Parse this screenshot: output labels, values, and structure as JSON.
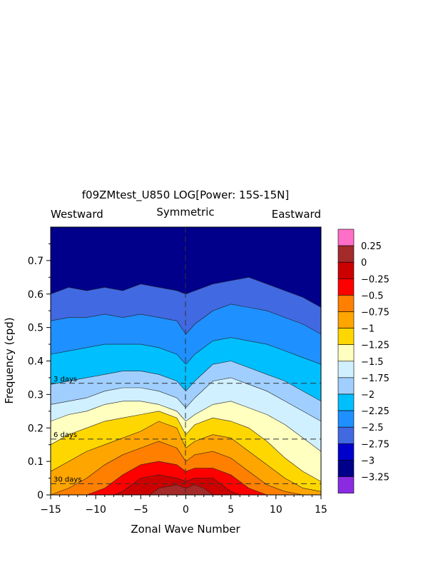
{
  "chart_data": {
    "type": "heatmap",
    "title": "f09ZMtest_U850 LOG[Power: 15S-15N]",
    "subtitle_left": "Westward",
    "subtitle_center": "Symmetric",
    "subtitle_right": "Eastward",
    "xlabel": "Zonal Wave Number",
    "ylabel": "Frequency (cpd)",
    "xlim": [
      -15,
      15
    ],
    "ylim": [
      0,
      0.8
    ],
    "x_ticks": [
      -15,
      -10,
      -5,
      0,
      5,
      10,
      15
    ],
    "x_tick_labels": [
      "−15",
      "−10",
      "−5",
      "0",
      "5",
      "10",
      "15"
    ],
    "y_ticks": [
      0,
      0.1,
      0.2,
      0.3,
      0.4,
      0.5,
      0.6,
      0.7
    ],
    "y_tick_labels": [
      "0",
      "0.1",
      "0.2",
      "0.3",
      "0.4",
      "0.5",
      "0.6",
      "0.7"
    ],
    "period_lines": [
      {
        "label": "3 days",
        "frequency": 0.3333
      },
      {
        "label": "6 days",
        "frequency": 0.1667
      },
      {
        "label": "30 days",
        "frequency": 0.0333
      }
    ],
    "colorbar": {
      "labels": [
        "0.25",
        "0",
        "−0.25",
        "−0.5",
        "−0.75",
        "−1",
        "−1.25",
        "−1.5",
        "−1.75",
        "−2",
        "−2.25",
        "−2.5",
        "−2.75",
        "−3",
        "−3.25"
      ],
      "colors_top_to_bottom": [
        "#ff6ec7",
        "#a52a2a",
        "#cd0000",
        "#ff0000",
        "#ff7f00",
        "#ffa500",
        "#ffd700",
        "#ffffc0",
        "#d0f0ff",
        "#a0cfff",
        "#00bfff",
        "#1e90ff",
        "#4169e1",
        "#0000cd",
        "#00008b",
        "#8a2be2"
      ]
    },
    "levels": [
      -3.25,
      -3,
      -2.75,
      -2.5,
      -2.25,
      -2,
      -1.75,
      -1.5,
      -1.25,
      -1,
      -0.75,
      -0.5,
      -0.25,
      0,
      0.25
    ],
    "fill_colors_low_to_high": [
      "#8a2be2",
      "#00008b",
      "#0000cd",
      "#4169e1",
      "#1e90ff",
      "#00bfff",
      "#a0cfff",
      "#d0f0ff",
      "#ffffc0",
      "#ffd700",
      "#ffa500",
      "#ff7f00",
      "#ff0000",
      "#cd0000",
      "#a52a2a",
      "#ff6ec7"
    ],
    "contour_boundaries": [
      {
        "level": -2.75,
        "points": [
          [
            -15,
            0.6
          ],
          [
            -13,
            0.62
          ],
          [
            -11,
            0.61
          ],
          [
            -9,
            0.62
          ],
          [
            -7,
            0.61
          ],
          [
            -5,
            0.63
          ],
          [
            -3,
            0.62
          ],
          [
            -1,
            0.61
          ],
          [
            0,
            0.6
          ],
          [
            1,
            0.61
          ],
          [
            3,
            0.63
          ],
          [
            5,
            0.64
          ],
          [
            7,
            0.65
          ],
          [
            9,
            0.63
          ],
          [
            11,
            0.61
          ],
          [
            13,
            0.59
          ],
          [
            15,
            0.56
          ]
        ]
      },
      {
        "level": -2.5,
        "points": [
          [
            -15,
            0.52
          ],
          [
            -13,
            0.53
          ],
          [
            -11,
            0.53
          ],
          [
            -9,
            0.54
          ],
          [
            -7,
            0.53
          ],
          [
            -5,
            0.54
          ],
          [
            -3,
            0.53
          ],
          [
            -1,
            0.52
          ],
          [
            0,
            0.48
          ],
          [
            1,
            0.51
          ],
          [
            3,
            0.55
          ],
          [
            5,
            0.57
          ],
          [
            7,
            0.56
          ],
          [
            9,
            0.55
          ],
          [
            11,
            0.53
          ],
          [
            13,
            0.51
          ],
          [
            15,
            0.48
          ]
        ]
      },
      {
        "level": -2.25,
        "points": [
          [
            -15,
            0.42
          ],
          [
            -13,
            0.43
          ],
          [
            -11,
            0.44
          ],
          [
            -9,
            0.45
          ],
          [
            -7,
            0.45
          ],
          [
            -5,
            0.45
          ],
          [
            -3,
            0.44
          ],
          [
            -1,
            0.42
          ],
          [
            0,
            0.39
          ],
          [
            1,
            0.42
          ],
          [
            3,
            0.46
          ],
          [
            5,
            0.47
          ],
          [
            7,
            0.46
          ],
          [
            9,
            0.45
          ],
          [
            11,
            0.43
          ],
          [
            13,
            0.41
          ],
          [
            15,
            0.39
          ]
        ]
      },
      {
        "level": -2,
        "points": [
          [
            -15,
            0.33
          ],
          [
            -13,
            0.34
          ],
          [
            -11,
            0.35
          ],
          [
            -9,
            0.36
          ],
          [
            -7,
            0.37
          ],
          [
            -5,
            0.37
          ],
          [
            -3,
            0.36
          ],
          [
            -1,
            0.34
          ],
          [
            0,
            0.31
          ],
          [
            1,
            0.34
          ],
          [
            3,
            0.39
          ],
          [
            5,
            0.4
          ],
          [
            7,
            0.38
          ],
          [
            9,
            0.36
          ],
          [
            11,
            0.34
          ],
          [
            13,
            0.31
          ],
          [
            15,
            0.28
          ]
        ]
      },
      {
        "level": -1.75,
        "points": [
          [
            -15,
            0.27
          ],
          [
            -13,
            0.28
          ],
          [
            -11,
            0.29
          ],
          [
            -9,
            0.31
          ],
          [
            -7,
            0.32
          ],
          [
            -5,
            0.32
          ],
          [
            -3,
            0.31
          ],
          [
            -1,
            0.29
          ],
          [
            0,
            0.26
          ],
          [
            1,
            0.29
          ],
          [
            3,
            0.34
          ],
          [
            5,
            0.35
          ],
          [
            7,
            0.33
          ],
          [
            9,
            0.31
          ],
          [
            11,
            0.28
          ],
          [
            13,
            0.25
          ],
          [
            15,
            0.22
          ]
        ]
      },
      {
        "level": -1.5,
        "points": [
          [
            -15,
            0.22
          ],
          [
            -13,
            0.24
          ],
          [
            -11,
            0.25
          ],
          [
            -9,
            0.27
          ],
          [
            -7,
            0.28
          ],
          [
            -5,
            0.28
          ],
          [
            -3,
            0.27
          ],
          [
            -1,
            0.25
          ],
          [
            0,
            0.22
          ],
          [
            1,
            0.24
          ],
          [
            3,
            0.27
          ],
          [
            5,
            0.28
          ],
          [
            7,
            0.26
          ],
          [
            9,
            0.24
          ],
          [
            11,
            0.21
          ],
          [
            13,
            0.17
          ],
          [
            15,
            0.13
          ]
        ]
      },
      {
        "level": -1.25,
        "points": [
          [
            -15,
            0.15
          ],
          [
            -13,
            0.18
          ],
          [
            -11,
            0.2
          ],
          [
            -9,
            0.22
          ],
          [
            -7,
            0.23
          ],
          [
            -5,
            0.24
          ],
          [
            -3,
            0.25
          ],
          [
            -1,
            0.23
          ],
          [
            0,
            0.18
          ],
          [
            1,
            0.21
          ],
          [
            3,
            0.23
          ],
          [
            5,
            0.22
          ],
          [
            7,
            0.2
          ],
          [
            9,
            0.16
          ],
          [
            11,
            0.11
          ],
          [
            13,
            0.07
          ],
          [
            15,
            0.04
          ]
        ]
      },
      {
        "level": -1,
        "points": [
          [
            -15,
            0.07
          ],
          [
            -13,
            0.1
          ],
          [
            -11,
            0.13
          ],
          [
            -9,
            0.15
          ],
          [
            -7,
            0.17
          ],
          [
            -5,
            0.19
          ],
          [
            -3,
            0.22
          ],
          [
            -1,
            0.2
          ],
          [
            0,
            0.14
          ],
          [
            1,
            0.16
          ],
          [
            3,
            0.18
          ],
          [
            5,
            0.17
          ],
          [
            7,
            0.13
          ],
          [
            9,
            0.09
          ],
          [
            11,
            0.05
          ],
          [
            13,
            0.02
          ],
          [
            15,
            0.01
          ]
        ]
      },
      {
        "level": -0.75,
        "points": [
          [
            -15,
            0.0
          ],
          [
            -13,
            0.02
          ],
          [
            -11,
            0.05
          ],
          [
            -9,
            0.09
          ],
          [
            -7,
            0.12
          ],
          [
            -5,
            0.14
          ],
          [
            -3,
            0.16
          ],
          [
            -1,
            0.14
          ],
          [
            0,
            0.1
          ],
          [
            1,
            0.12
          ],
          [
            3,
            0.13
          ],
          [
            5,
            0.11
          ],
          [
            7,
            0.07
          ],
          [
            9,
            0.03
          ],
          [
            11,
            0.01
          ],
          [
            13,
            0.0
          ],
          [
            15,
            0.0
          ]
        ]
      },
      {
        "level": -0.5,
        "points": [
          [
            -15,
            0.0
          ],
          [
            -11,
            0.0
          ],
          [
            -9,
            0.02
          ],
          [
            -7,
            0.06
          ],
          [
            -5,
            0.09
          ],
          [
            -3,
            0.1
          ],
          [
            -1,
            0.09
          ],
          [
            0,
            0.07
          ],
          [
            1,
            0.08
          ],
          [
            3,
            0.08
          ],
          [
            5,
            0.06
          ],
          [
            7,
            0.02
          ],
          [
            9,
            0.0
          ],
          [
            15,
            0.0
          ]
        ]
      },
      {
        "level": -0.25,
        "points": [
          [
            -15,
            0.0
          ],
          [
            -8,
            0.0
          ],
          [
            -7,
            0.01
          ],
          [
            -5,
            0.05
          ],
          [
            -3,
            0.06
          ],
          [
            -1,
            0.05
          ],
          [
            0,
            0.04
          ],
          [
            1,
            0.05
          ],
          [
            3,
            0.05
          ],
          [
            4,
            0.03
          ],
          [
            5,
            0.01
          ],
          [
            6,
            0.0
          ],
          [
            15,
            0.0
          ]
        ]
      },
      {
        "level": 0,
        "points": [
          [
            -15,
            0.0
          ],
          [
            -4,
            0.0
          ],
          [
            -3,
            0.02
          ],
          [
            -1,
            0.03
          ],
          [
            0,
            0.02
          ],
          [
            1,
            0.03
          ],
          [
            2,
            0.02
          ],
          [
            3,
            0.0
          ],
          [
            15,
            0.0
          ]
        ]
      }
    ]
  }
}
